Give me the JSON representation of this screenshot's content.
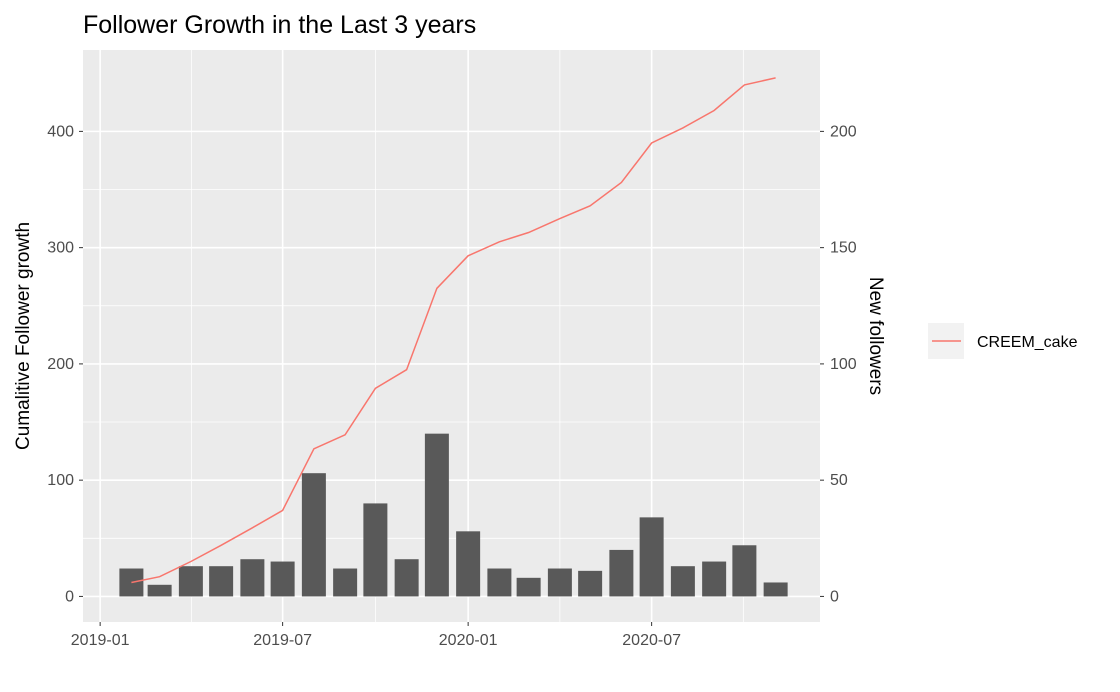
{
  "chart_data": {
    "type": "bar",
    "title": "Follower Growth in the Last 3 years",
    "xlabel": "",
    "ylabel": "Cumalitive Follower growth",
    "y2label": "New followers",
    "x_ticks": [
      "2019-01",
      "2019-07",
      "2020-01",
      "2020-07"
    ],
    "y_ticks": [
      "0",
      "100",
      "200",
      "300",
      "400"
    ],
    "y2_ticks": [
      "0",
      "50",
      "100",
      "150",
      "200"
    ],
    "xlim": [
      "2018-12-15",
      "2020-12-15"
    ],
    "ylim": [
      -22,
      470
    ],
    "y2lim": [
      -11,
      235
    ],
    "grid": true,
    "legend_position": "right",
    "bars": {
      "axis": "right",
      "color": "#595959",
      "months": [
        "2019-02",
        "2019-03",
        "2019-04",
        "2019-05",
        "2019-06",
        "2019-07",
        "2019-08",
        "2019-09",
        "2019-10",
        "2019-11",
        "2019-12",
        "2020-01",
        "2020-02",
        "2020-03",
        "2020-04",
        "2020-05",
        "2020-06",
        "2020-07",
        "2020-08",
        "2020-09",
        "2020-10",
        "2020-11"
      ],
      "values": [
        12,
        5,
        13,
        13,
        16,
        15,
        53,
        12,
        40,
        16,
        70,
        28,
        12,
        8,
        12,
        11,
        20,
        34,
        13,
        15,
        22,
        6
      ]
    },
    "series": [
      {
        "name": "CREEM_cake",
        "type": "line",
        "axis": "left",
        "color": "#f8766d",
        "x": [
          "2019-02",
          "2019-03",
          "2019-04",
          "2019-05",
          "2019-06",
          "2019-07",
          "2019-08",
          "2019-09",
          "2019-10",
          "2019-11",
          "2019-12",
          "2020-01",
          "2020-02",
          "2020-03",
          "2020-04",
          "2020-05",
          "2020-06",
          "2020-07",
          "2020-08",
          "2020-09",
          "2020-10",
          "2020-11"
        ],
        "values": [
          12,
          17,
          30,
          44,
          59,
          74,
          127,
          139,
          179,
          195,
          265,
          293,
          305,
          313,
          325,
          336,
          356,
          390,
          403,
          418,
          440,
          446
        ]
      }
    ]
  }
}
